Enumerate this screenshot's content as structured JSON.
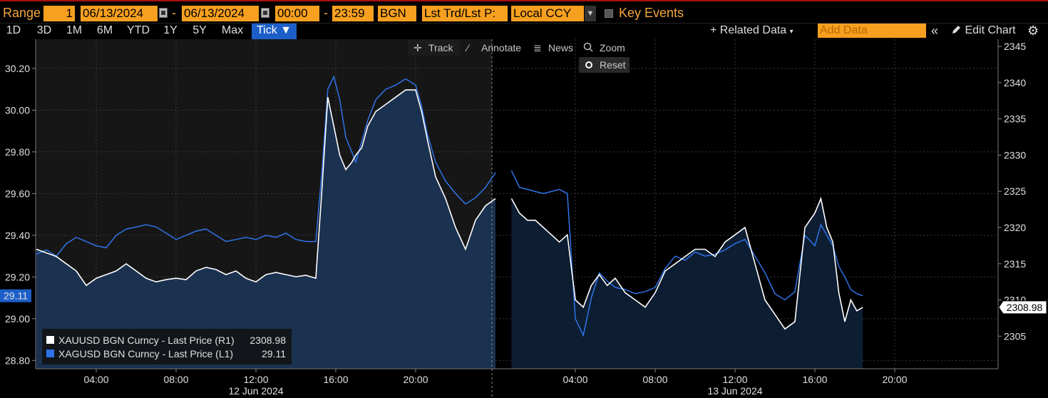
{
  "header": {
    "range_label": "Range",
    "range_count": "1",
    "start_date": "06/13/2024",
    "end_date": "06/13/2024",
    "start_time": "00:00",
    "end_time": "23:59",
    "source": "BGN",
    "price_type": "Lst Trd/Lst P:",
    "currency": "Local CCY",
    "key_events": "Key Events"
  },
  "timeframes": [
    "1D",
    "3D",
    "1M",
    "6M",
    "YTD",
    "1Y",
    "5Y",
    "Max",
    "Tick ▼"
  ],
  "toolbar": {
    "related_data": "+ Related Data",
    "add_data_placeholder": "Add Data",
    "collapse": "«",
    "edit_chart": "Edit Chart"
  },
  "chart_tools": {
    "track": "Track",
    "annotate": "Annotate",
    "news": "News",
    "zoom": "Zoom",
    "reset": "Reset"
  },
  "colors": {
    "accent": "#f7a01f",
    "xau": "#ffffff",
    "xag": "#2f73e8",
    "area": "#1b3353",
    "selected": "#1d5fc8"
  },
  "chart_data": {
    "type": "line",
    "x_ticks": [
      "04:00",
      "08:00",
      "12:00",
      "16:00",
      "20:00",
      "04:00",
      "08:00",
      "12:00",
      "16:00",
      "20:00"
    ],
    "date_labels": [
      "12 Jun 2024",
      "13 Jun 2024"
    ],
    "left_axis": {
      "ticks": [
        "30.20",
        "30.00",
        "29.80",
        "29.60",
        "29.40",
        "29.20",
        "29.00",
        "28.80"
      ],
      "range": [
        28.76,
        30.34
      ]
    },
    "right_axis": {
      "ticks": [
        "2345",
        "2340",
        "2335",
        "2330",
        "2325",
        "2320",
        "2315",
        "2310",
        "2305"
      ],
      "range": [
        2300.5,
        2346
      ]
    },
    "left_last_label": "29.11",
    "right_last_label": "2308.98",
    "series": [
      {
        "name": "XAUUSD BGN Curncy - Last Price (R1)",
        "legend_value": "2308.98",
        "axis": "right",
        "session1_hours": [
          1.0,
          1.5,
          2.0,
          2.5,
          3.0,
          3.5,
          4.0,
          4.5,
          5.0,
          5.5,
          6.0,
          6.5,
          7.0,
          7.5,
          8.0,
          8.5,
          9.0,
          9.5,
          10.0,
          10.5,
          11.0,
          11.5,
          12.0,
          12.5,
          13.0,
          13.5,
          14.0,
          14.5,
          15.0,
          15.3,
          15.6,
          15.9,
          16.2,
          16.5,
          16.8,
          17.0,
          17.3,
          17.6,
          18.0,
          18.5,
          19.0,
          19.5,
          20.0,
          20.3,
          20.6,
          21.0,
          21.5,
          22.0,
          22.5,
          23.0,
          23.5,
          24.0
        ],
        "session1_values": [
          2317,
          2316.5,
          2316,
          2315,
          2314,
          2312,
          2313,
          2313.5,
          2314,
          2315,
          2314,
          2313,
          2312.5,
          2312.8,
          2313,
          2312.8,
          2314,
          2314.5,
          2314.2,
          2313.5,
          2314,
          2313,
          2312.5,
          2313.5,
          2313.8,
          2313.5,
          2313.2,
          2313.4,
          2313,
          2325,
          2338,
          2334,
          2330,
          2328,
          2329,
          2330,
          2331,
          2334,
          2336,
          2337,
          2338,
          2339,
          2339,
          2336,
          2332,
          2327,
          2324,
          2320,
          2317,
          2321,
          2323,
          2324
        ],
        "session2_hours": [
          24.8,
          25.2,
          25.6,
          26.0,
          26.4,
          26.8,
          27.2,
          27.6,
          28.0,
          28.4,
          28.8,
          29.2,
          29.6,
          30.0,
          30.5,
          31.0,
          31.5,
          32.0,
          32.5,
          33.0,
          33.5,
          34.0,
          34.5,
          35.0,
          35.5,
          36.0,
          36.5,
          37.0,
          37.5,
          38.0,
          38.5,
          39.0,
          39.5,
          40.0,
          40.3,
          40.6,
          40.9,
          41.2,
          41.5,
          41.8,
          42.1,
          42.4
        ],
        "session2_values": [
          2324,
          2322,
          2321,
          2321,
          2320,
          2319,
          2318,
          2319,
          2310,
          2309,
          2312,
          2313.5,
          2312,
          2313,
          2311,
          2310,
          2309,
          2311,
          2314,
          2315,
          2316,
          2317,
          2317,
          2316,
          2318,
          2319,
          2320,
          2315,
          2310,
          2308,
          2306,
          2307,
          2320,
          2322,
          2324,
          2320,
          2318,
          2311,
          2307,
          2310,
          2308.5,
          2308.98
        ]
      },
      {
        "name": "XAGUSD BGN Curncy - Last Price (L1)",
        "legend_value": "29.11",
        "axis": "left",
        "session1_hours": [
          1.0,
          1.5,
          2.0,
          2.5,
          3.0,
          3.5,
          4.0,
          4.5,
          5.0,
          5.5,
          6.0,
          6.5,
          7.0,
          7.5,
          8.0,
          8.5,
          9.0,
          9.5,
          10.0,
          10.5,
          11.0,
          11.5,
          12.0,
          12.5,
          13.0,
          13.5,
          14.0,
          14.5,
          15.0,
          15.3,
          15.6,
          15.9,
          16.2,
          16.5,
          16.8,
          17.0,
          17.3,
          17.6,
          18.0,
          18.5,
          19.0,
          19.5,
          20.0,
          20.3,
          20.6,
          21.0,
          21.5,
          22.0,
          22.5,
          23.0,
          23.5,
          24.0
        ],
        "session1_values": [
          29.31,
          29.33,
          29.3,
          29.36,
          29.39,
          29.37,
          29.35,
          29.34,
          29.4,
          29.43,
          29.44,
          29.45,
          29.44,
          29.41,
          29.38,
          29.4,
          29.42,
          29.43,
          29.4,
          29.37,
          29.38,
          29.39,
          29.38,
          29.4,
          29.39,
          29.41,
          29.38,
          29.37,
          29.37,
          29.7,
          30.1,
          30.16,
          30.05,
          29.87,
          29.8,
          29.75,
          29.85,
          29.95,
          30.05,
          30.1,
          30.12,
          30.15,
          30.12,
          30.02,
          29.88,
          29.75,
          29.66,
          29.6,
          29.55,
          29.58,
          29.63,
          29.7
        ],
        "session2_hours": [
          24.8,
          25.2,
          25.6,
          26.0,
          26.4,
          26.8,
          27.2,
          27.6,
          28.0,
          28.4,
          28.8,
          29.2,
          29.6,
          30.0,
          30.5,
          31.0,
          31.5,
          32.0,
          32.5,
          33.0,
          33.5,
          34.0,
          34.5,
          35.0,
          35.5,
          36.0,
          36.5,
          37.0,
          37.5,
          38.0,
          38.5,
          39.0,
          39.5,
          40.0,
          40.3,
          40.6,
          40.9,
          41.2,
          41.5,
          41.8,
          42.1,
          42.4
        ],
        "session2_values": [
          29.71,
          29.63,
          29.62,
          29.61,
          29.6,
          29.61,
          29.62,
          29.6,
          29.0,
          28.92,
          29.1,
          29.22,
          29.18,
          29.15,
          29.14,
          29.12,
          29.13,
          29.15,
          29.24,
          29.3,
          29.28,
          29.32,
          29.3,
          29.31,
          29.33,
          29.36,
          29.38,
          29.3,
          29.22,
          29.12,
          29.09,
          29.13,
          29.4,
          29.35,
          29.45,
          29.4,
          29.35,
          29.25,
          29.2,
          29.14,
          29.12,
          29.11
        ]
      }
    ]
  }
}
